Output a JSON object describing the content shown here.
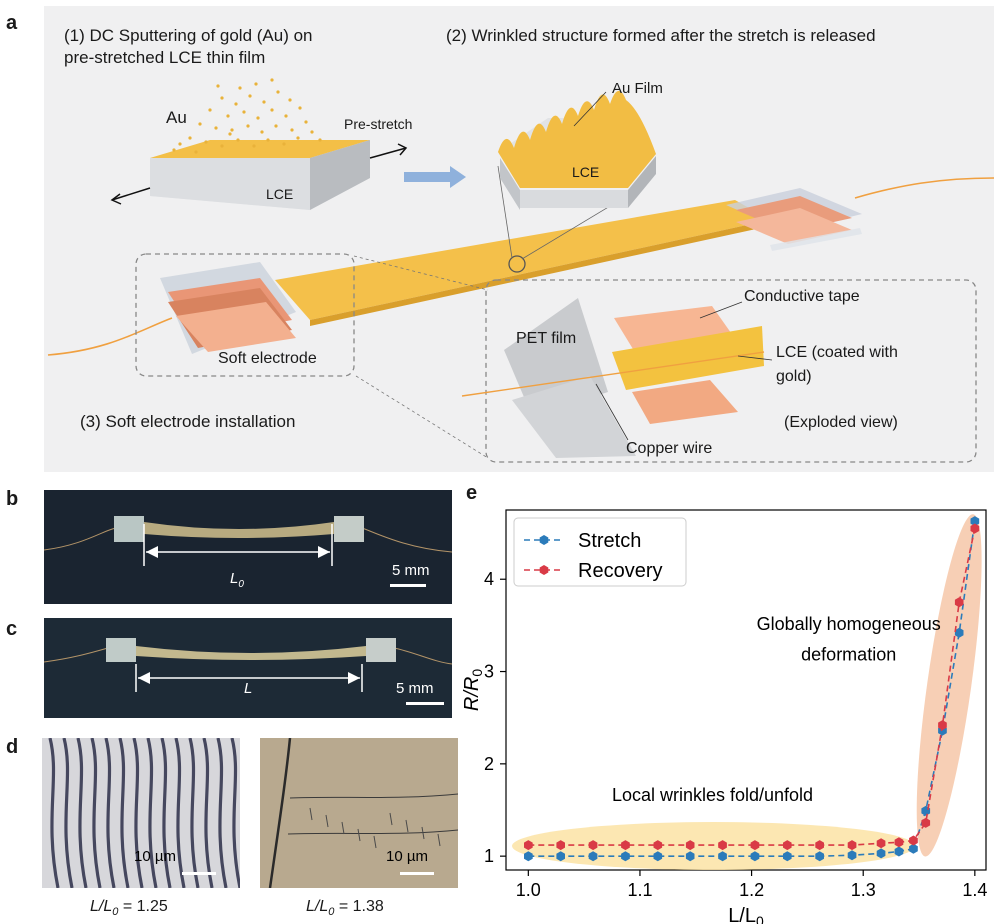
{
  "panel_letters": {
    "a": "a",
    "b": "b",
    "c": "c",
    "d": "d",
    "e": "e"
  },
  "panel_a": {
    "step1": "(1) DC Sputtering of gold (Au) on",
    "step1_line2": "pre-stretched LCE thin film",
    "step2": "(2) Wrinkled structure formed after the stretch is released",
    "step3": "(3) Soft electrode installation",
    "au": "Au",
    "lce": "LCE",
    "pre_stretch": "Pre-stretch",
    "au_film": "Au Film",
    "lce2": "LCE",
    "soft_electrode": "Soft electrode",
    "pet_film": "PET film",
    "conductive_tape": "Conductive tape",
    "lce_coated": "LCE (coated with",
    "lce_coated2": "gold)",
    "copper_wire": "Copper wire",
    "exploded_view": "(Exploded view)"
  },
  "panel_b": {
    "length_label": "L",
    "length_sub": "0",
    "scale": "5 mm"
  },
  "panel_c": {
    "length_label": "L",
    "scale": "5 mm"
  },
  "panel_d": {
    "left_scale": "10 µm",
    "right_scale": "10 µm",
    "left_caption_main": "L/L",
    "left_caption_sub": "0",
    "left_caption_val": " = 1.25",
    "right_caption_main": "L/L",
    "right_caption_sub": "0",
    "right_caption_val": " = 1.38"
  },
  "colors": {
    "stretch": "#2b7bba",
    "recovery": "#d93a46",
    "wrinkle_region": "#fbe3a4",
    "homog_region": "#f6c7a8",
    "gold": "#f2bc3c"
  },
  "chart_data": {
    "type": "line",
    "title": "",
    "xlabel": "L/L",
    "xlabel_sub": "0",
    "ylabel": "R/R",
    "ylabel_sub": "0",
    "xlim": [
      0.98,
      1.41
    ],
    "ylim": [
      0.85,
      4.75
    ],
    "xticks": [
      1.0,
      1.1,
      1.2,
      1.3,
      1.4
    ],
    "xtick_labels": [
      "1.0",
      "1.1",
      "1.2",
      "1.3",
      "1.4"
    ],
    "yticks": [
      1,
      2,
      3,
      4
    ],
    "ytick_labels": [
      "1",
      "2",
      "3",
      "4"
    ],
    "grid": false,
    "legend": "top-left",
    "annotations": [
      "Local wrinkles fold/unfold",
      "Globally homogeneous",
      "deformation"
    ],
    "series": [
      {
        "name": "Stretch",
        "marker": "hexagon",
        "x": [
          1.0,
          1.029,
          1.058,
          1.087,
          1.116,
          1.145,
          1.174,
          1.203,
          1.232,
          1.261,
          1.29,
          1.316,
          1.332,
          1.345,
          1.356,
          1.371,
          1.386,
          1.4
        ],
        "y": [
          1.0,
          1.0,
          1.0,
          1.0,
          1.0,
          1.0,
          1.0,
          1.0,
          1.0,
          1.0,
          1.01,
          1.03,
          1.05,
          1.08,
          1.49,
          2.36,
          3.42,
          4.63
        ]
      },
      {
        "name": "Recovery",
        "marker": "hexagon",
        "x": [
          1.0,
          1.029,
          1.058,
          1.087,
          1.116,
          1.145,
          1.174,
          1.203,
          1.232,
          1.261,
          1.29,
          1.316,
          1.332,
          1.345,
          1.356,
          1.371,
          1.386,
          1.4
        ],
        "y": [
          1.12,
          1.12,
          1.12,
          1.12,
          1.12,
          1.12,
          1.12,
          1.12,
          1.12,
          1.12,
          1.12,
          1.14,
          1.15,
          1.17,
          1.36,
          2.42,
          3.75,
          4.55
        ]
      }
    ]
  }
}
